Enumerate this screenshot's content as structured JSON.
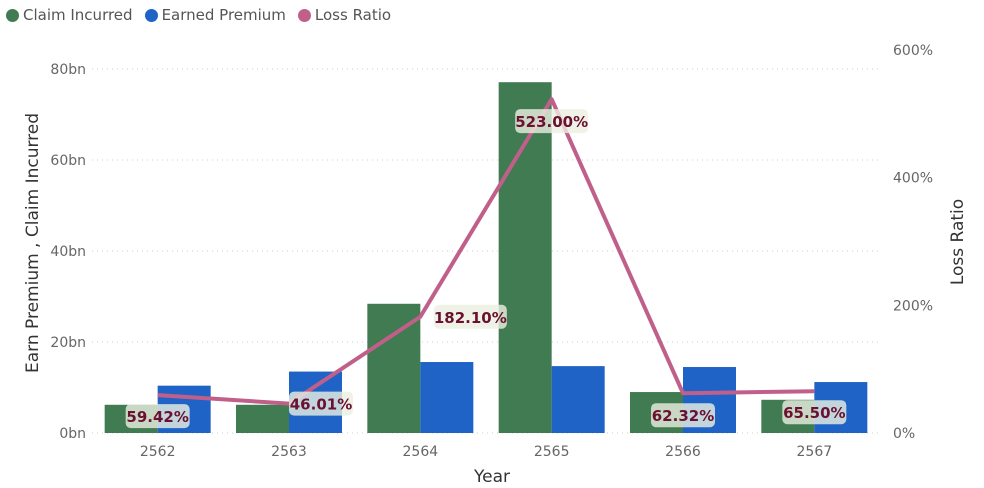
{
  "chart_data": {
    "type": "bar+line",
    "categories": [
      "2562",
      "2563",
      "2564",
      "2565",
      "2566",
      "2567"
    ],
    "series": [
      {
        "name": "Claim Incurred",
        "axis": "left",
        "type": "bar",
        "color": "#417B52",
        "values": [
          6.2,
          6.2,
          28.4,
          77.1,
          9.0,
          7.3
        ]
      },
      {
        "name": "Earned Premium",
        "axis": "left",
        "type": "bar",
        "color": "#1F63C6",
        "values": [
          10.4,
          13.5,
          15.6,
          14.7,
          14.5,
          11.2
        ]
      },
      {
        "name": "Loss Ratio",
        "axis": "right",
        "type": "line",
        "color": "#C0608A",
        "values": [
          59.42,
          46.01,
          182.1,
          523.0,
          62.32,
          65.5
        ],
        "labels": [
          "59.42%",
          "46.01%",
          "182.10%",
          "523.00%",
          "62.32%",
          "65.50%"
        ]
      }
    ],
    "xlabel": "Year",
    "ylabel": "Earn Premium , Claim Incurred",
    "y2label": "Loss Ratio",
    "ylim": [
      0,
      80
    ],
    "y2lim": [
      0,
      600
    ],
    "yticks": [
      "0bn",
      "20bn",
      "40bn",
      "60bn",
      "80bn"
    ],
    "y2ticks": [
      "0%",
      "200%",
      "400%",
      "600%"
    ],
    "grid": true,
    "legend": "top-left"
  }
}
